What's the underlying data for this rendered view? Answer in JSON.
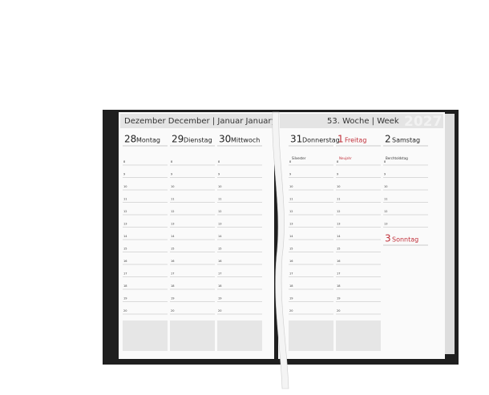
{
  "header": {
    "left": "Dezember December | Januar January",
    "right": "53. Woche | Week",
    "year": "2027"
  },
  "days": [
    {
      "number": "28",
      "name": "Montag"
    },
    {
      "number": "29",
      "name": "Dienstag"
    },
    {
      "number": "30",
      "name": "Mittwoch"
    },
    {
      "number": "31",
      "name": "Donnerstag"
    },
    {
      "number": "1",
      "name": "Freitag"
    },
    {
      "number": "2",
      "name": "Samstag"
    },
    {
      "number": "3",
      "name": "Sonntag"
    }
  ],
  "hours": [
    "8",
    "9",
    "10",
    "11",
    "12",
    "13",
    "14",
    "15",
    "16",
    "17",
    "18",
    "19",
    "20"
  ],
  "notes": {
    "silvester": "Silvester",
    "neujahr": "Neujahr",
    "berchtoldstag": "Berchtoldstag"
  }
}
